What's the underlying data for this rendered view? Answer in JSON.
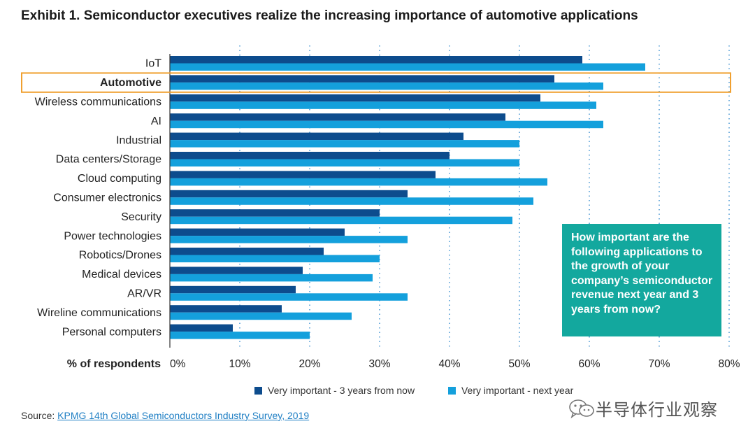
{
  "title": "Exhibit 1. Semiconductor executives realize the increasing importance of automotive applications",
  "callout": "How important are the following applications to the growth of your company’s semiconductor revenue next year and 3 years from now?",
  "source": {
    "prefix": "Source:",
    "link_text": "KPMG 14th Global Semiconductors Industry Survey, 2019"
  },
  "watermark": "半导体行业观察",
  "colors": {
    "series_3yr": "#0d4c8d",
    "series_next": "#14a0dc",
    "highlight": "#f0a030",
    "callout_bg": "#13a89e"
  },
  "icons": {
    "watermark": "wechat-icon"
  },
  "chart_data": {
    "type": "bar",
    "orientation": "horizontal",
    "categories": [
      "IoT",
      "Automotive",
      "Wireless communications",
      "AI",
      "Industrial",
      "Data centers/Storage",
      "Cloud computing",
      "Consumer electronics",
      "Security",
      "Power technologies",
      "Robotics/Drones",
      "Medical devices",
      "AR/VR",
      "Wireline communications",
      "Personal computers"
    ],
    "highlighted_category": "Automotive",
    "series": [
      {
        "name": "Very important - 3 years from now",
        "values": [
          59,
          55,
          53,
          48,
          42,
          40,
          38,
          34,
          30,
          25,
          22,
          19,
          18,
          16,
          9
        ]
      },
      {
        "name": "Very important - next year",
        "values": [
          68,
          62,
          61,
          62,
          50,
          50,
          54,
          52,
          49,
          34,
          30,
          29,
          34,
          26,
          20
        ]
      }
    ],
    "xlabel": "% of respondents",
    "xlim": [
      0,
      80
    ],
    "xticks": [
      "0%",
      "10%",
      "20%",
      "30%",
      "40%",
      "50%",
      "60%",
      "70%",
      "80%"
    ],
    "grid": "vertical dotted",
    "legend_position": "bottom"
  }
}
